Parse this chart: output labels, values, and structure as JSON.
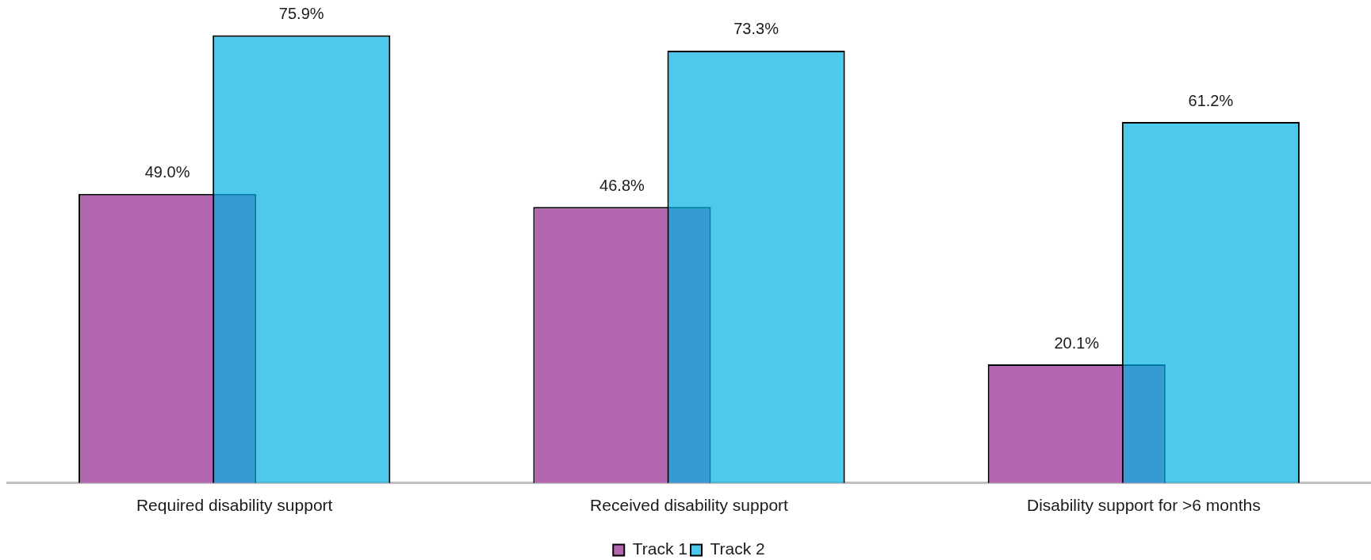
{
  "chart_data": {
    "type": "bar",
    "categories": [
      "Required disability support",
      "Received disability support",
      "Disability support for >6 months"
    ],
    "series": [
      {
        "name": "Track 1",
        "color": "#b366b0",
        "values": [
          49.0,
          46.8,
          20.1
        ],
        "value_labels": [
          "49.0%",
          "46.8%",
          "20.1%"
        ]
      },
      {
        "name": "Track 2",
        "color": "#4ec9eb",
        "values": [
          75.9,
          73.3,
          61.2
        ],
        "value_labels": [
          "75.9%",
          "73.3%",
          "61.2%"
        ]
      }
    ],
    "legend": "bottom"
  }
}
